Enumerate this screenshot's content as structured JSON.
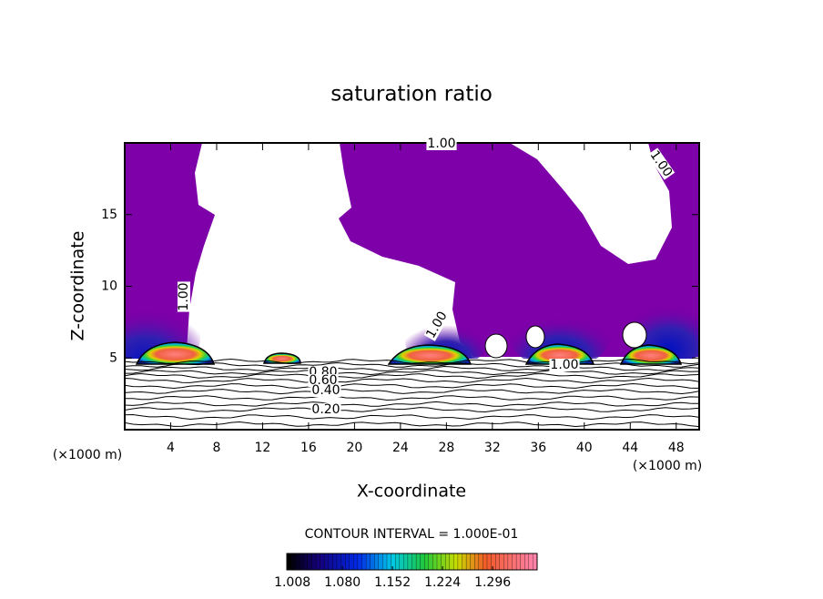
{
  "chart_data": {
    "type": "contour",
    "title": "saturation ratio",
    "x_label": "X-coordinate",
    "y_label": "Z-coordinate",
    "x_unit_label": "(×1000 m)",
    "xlim": [
      0,
      50
    ],
    "xticks": [
      4,
      8,
      12,
      16,
      20,
      24,
      28,
      32,
      36,
      40,
      44,
      48
    ],
    "ylim": [
      0,
      20
    ],
    "yticks": [
      5,
      10,
      15
    ],
    "contour_interval_label": "CONTOUR INTERVAL = 1.000E-01",
    "contour_labels": [
      {
        "value": 1,
        "label": "1.00"
      },
      {
        "value": 0.8,
        "label": "0.80"
      },
      {
        "value": 0.6,
        "label": "0.60"
      },
      {
        "value": 0.4,
        "label": "0.40"
      },
      {
        "value": 0.2,
        "label": "0.20"
      }
    ],
    "colorbar_lim": [
      1.0,
      1.36
    ],
    "colorbar_ticks": [
      1.008,
      {
        "value": 1.08,
        "label": "1.080"
      },
      1.152,
      1.224,
      1.296
    ],
    "fill_color": "#7d00a8"
  }
}
